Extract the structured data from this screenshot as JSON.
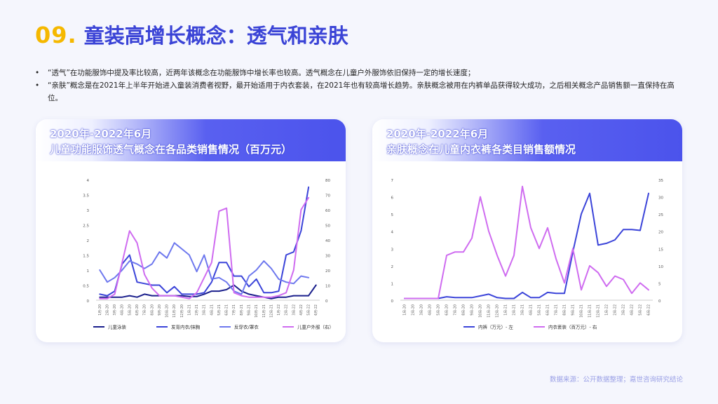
{
  "page": {
    "title_num": "09.",
    "title_text": "童装高增长概念：透气和亲肤",
    "bullets": [
      "“透气”在功能服饰中提及率比较高，近两年该概念在功能服饰中增长率也较高。透气概念在儿童户外服饰依旧保持一定的增长速度；",
      "“亲肤”概念是在2021年上半年开始进入童装消费者视野，最开始适用于内衣套装，在2021年也有较高增长趋势。亲肤概念被用在内裤单品获得较大成功，之后相关概念产品销售额一直保持在高位。"
    ],
    "bullet_mark": "•",
    "source": "数据来源：公开数据整理；嘉世咨询研究结论"
  },
  "cards": [
    {
      "line1": "2020年-2022年6月",
      "line2": "儿童功能服饰透气概念在各品类销售情况（百万元）"
    },
    {
      "line1": "2020年-2022年6月",
      "line2": "亲肤概念在儿童内衣裤各类目销售额情况"
    }
  ],
  "chart_data": [
    {
      "type": "line",
      "x": [
        "1月-20",
        "2月-20",
        "3月-20",
        "4月-20",
        "5月-20",
        "6月-20",
        "7月-20",
        "8月-20",
        "9月-20",
        "10月-20",
        "11月-20",
        "12月-20",
        "1月-21",
        "2月-21",
        "3月-21",
        "4月-21",
        "5月-21",
        "6月-21",
        "7月-21",
        "8月-21",
        "9月-21",
        "10月-21",
        "11月-21",
        "12月-21",
        "1月-22",
        "2月-22",
        "3月-22",
        "4月-22",
        "5月-22",
        "6月-22"
      ],
      "ylim_left": [
        0,
        4
      ],
      "yticks_left": [
        "0",
        "0.5",
        "1",
        "1.5",
        "2",
        "2.5",
        "3",
        "3.5",
        "4"
      ],
      "ylim_right": [
        0,
        80
      ],
      "yticks_right": [
        "0",
        "10",
        "20",
        "30",
        "40",
        "50",
        "60",
        "70",
        "80"
      ],
      "series": [
        {
          "name": "儿童泳装",
          "axis": "left",
          "color": "#1a1f8c",
          "values": [
            0.1,
            0.1,
            0.1,
            0.1,
            0.15,
            0.1,
            0.2,
            0.15,
            0.15,
            0.15,
            0.15,
            0.15,
            0.12,
            0.12,
            0.2,
            0.3,
            0.3,
            0.35,
            0.5,
            0.3,
            0.2,
            0.15,
            0.1,
            0.05,
            0.1,
            0.1,
            0.15,
            0.15,
            0.15,
            0.5
          ]
        },
        {
          "name": "发育内衣/抹胸",
          "axis": "left",
          "color": "#3b44d9",
          "values": [
            0.2,
            0.15,
            0.3,
            1.2,
            1.5,
            0.6,
            0.55,
            0.5,
            0.5,
            0.25,
            0.45,
            0.2,
            0.2,
            0.2,
            0.25,
            0.6,
            1.25,
            1.25,
            0.8,
            0.8,
            0.45,
            0.7,
            0.25,
            0.25,
            0.3,
            1.5,
            1.6,
            2.3,
            3.75,
            null
          ]
        },
        {
          "name": "反穿衣/罩衣",
          "axis": "left",
          "color": "#6e78ee",
          "values": [
            1.0,
            0.6,
            0.75,
            1.0,
            1.3,
            1.2,
            1.05,
            1.2,
            1.6,
            1.4,
            1.9,
            1.7,
            1.5,
            0.95,
            1.5,
            0.7,
            0.75,
            0.6,
            0.3,
            0.2,
            0.8,
            1.0,
            1.3,
            1.05,
            0.7,
            0.6,
            0.55,
            0.8,
            0.75,
            null
          ]
        },
        {
          "name": "儿童户外服（右）",
          "axis": "right",
          "color": "#cf6cf0",
          "values": [
            1,
            1,
            4,
            25,
            46,
            38,
            17,
            8,
            3,
            3,
            3,
            2,
            1,
            5,
            15,
            25,
            59,
            61,
            5,
            3,
            2,
            2,
            2,
            2,
            3,
            5,
            20,
            60,
            68,
            null
          ]
        }
      ]
    },
    {
      "type": "line",
      "x": [
        "1月-20",
        "2月-20",
        "3月-20",
        "4月-20",
        "5月-20",
        "6月-20",
        "7月-20",
        "8月-20",
        "9月-20",
        "10月-20",
        "11月-20",
        "12月-20",
        "1月-21",
        "2月-21",
        "3月-21",
        "4月-21",
        "5月-21",
        "6月-21",
        "7月-21",
        "8月-21",
        "9月-21",
        "10月-21",
        "11月-21",
        "12月-21",
        "1月-22",
        "2月-22",
        "3月-22",
        "4月-22",
        "5月-22",
        "6月-22"
      ],
      "ylim_left": [
        0,
        7
      ],
      "yticks_left": [
        "0",
        "1",
        "2",
        "3",
        "4",
        "5",
        "6",
        "7"
      ],
      "ylim_right": [
        0,
        35
      ],
      "yticks_right": [
        "0",
        "5",
        "10",
        "15",
        "20",
        "25",
        "30",
        "35"
      ],
      "series": [
        {
          "name": "内裤（万元）- 左",
          "axis": "left",
          "color": "#3b44d9",
          "values": [
            0.1,
            0.1,
            0.1,
            0.1,
            0.1,
            0.2,
            0.15,
            0.15,
            0.15,
            0.25,
            0.35,
            0.15,
            0.1,
            0.1,
            0.45,
            0.15,
            0.15,
            0.45,
            0.4,
            0.4,
            2.8,
            5.0,
            6.2,
            3.2,
            3.3,
            3.5,
            4.1,
            4.1,
            4.05,
            6.2
          ]
        },
        {
          "name": "内衣套装（百万元）- 右",
          "axis": "right",
          "color": "#cf6cf0",
          "values": [
            0.5,
            0.5,
            0.5,
            0.5,
            0.5,
            13,
            14,
            14,
            18,
            30,
            20,
            13,
            7,
            13,
            33,
            21,
            15,
            21,
            12,
            5,
            15,
            3,
            10,
            8,
            4,
            7,
            6,
            2,
            5,
            3
          ]
        }
      ]
    }
  ]
}
